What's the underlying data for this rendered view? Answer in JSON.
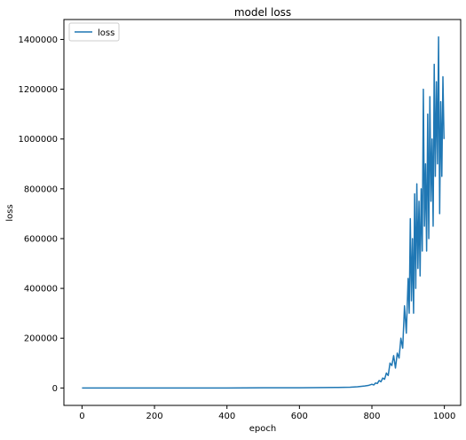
{
  "chart_data": {
    "type": "line",
    "title": "model loss",
    "xlabel": "epoch",
    "ylabel": "loss",
    "xlim": [
      -50,
      1045
    ],
    "ylim": [
      -70000,
      1480000
    ],
    "xticks": [
      0,
      200,
      400,
      600,
      800,
      1000
    ],
    "yticks": [
      0,
      200000,
      400000,
      600000,
      800000,
      1000000,
      1200000,
      1400000
    ],
    "grid": false,
    "legend": {
      "location": "top-left",
      "entries": [
        "loss"
      ]
    },
    "series": [
      {
        "name": "loss",
        "color": "#1f77b4",
        "x": [
          0,
          100,
          200,
          300,
          400,
          500,
          600,
          700,
          740,
          760,
          780,
          790,
          800,
          805,
          810,
          815,
          820,
          825,
          830,
          835,
          840,
          845,
          850,
          855,
          860,
          865,
          870,
          875,
          880,
          885,
          890,
          895,
          900,
          903,
          906,
          909,
          912,
          915,
          918,
          921,
          924,
          927,
          930,
          933,
          936,
          939,
          942,
          945,
          948,
          951,
          954,
          957,
          960,
          963,
          966,
          969,
          972,
          975,
          978,
          981,
          984,
          987,
          990,
          993,
          996,
          999
        ],
        "y": [
          0,
          0,
          0,
          0,
          0,
          1000,
          1000,
          2000,
          3000,
          5000,
          8000,
          10000,
          15000,
          12000,
          20000,
          18000,
          30000,
          25000,
          40000,
          35000,
          60000,
          50000,
          100000,
          90000,
          130000,
          80000,
          140000,
          120000,
          200000,
          160000,
          330000,
          220000,
          440000,
          300000,
          680000,
          350000,
          600000,
          300000,
          780000,
          400000,
          820000,
          480000,
          750000,
          450000,
          800000,
          550000,
          1200000,
          650000,
          900000,
          550000,
          1100000,
          600000,
          1170000,
          750000,
          1000000,
          650000,
          1300000,
          850000,
          1230000,
          900000,
          1410000,
          700000,
          1150000,
          850000,
          1250000,
          1000000
        ]
      }
    ]
  }
}
